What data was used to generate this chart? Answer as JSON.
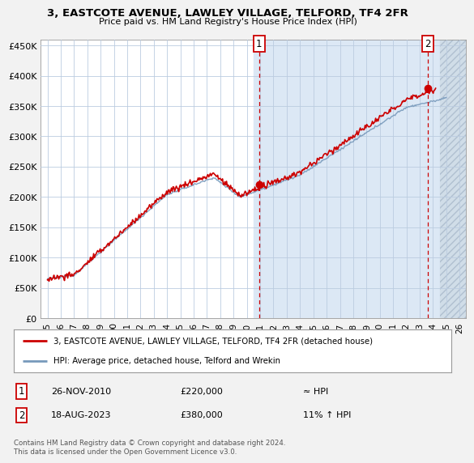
{
  "title": "3, EASTCOTE AVENUE, LAWLEY VILLAGE, TELFORD, TF4 2FR",
  "subtitle": "Price paid vs. HM Land Registry's House Price Index (HPI)",
  "ylim": [
    0,
    460000
  ],
  "yticks": [
    0,
    50000,
    100000,
    150000,
    200000,
    250000,
    300000,
    350000,
    400000,
    450000
  ],
  "ytick_labels": [
    "£0",
    "£50K",
    "£100K",
    "£150K",
    "£200K",
    "£250K",
    "£300K",
    "£350K",
    "£400K",
    "£450K"
  ],
  "xticks": [
    1995,
    1996,
    1997,
    1998,
    1999,
    2000,
    2001,
    2002,
    2003,
    2004,
    2005,
    2006,
    2007,
    2008,
    2009,
    2010,
    2011,
    2012,
    2013,
    2014,
    2015,
    2016,
    2017,
    2018,
    2019,
    2020,
    2021,
    2022,
    2023,
    2024,
    2025,
    2026
  ],
  "xlim_left": 1994.5,
  "xlim_right": 2026.5,
  "transaction1_x": 2010.91,
  "transaction1_y": 220000,
  "transaction1_label": "1",
  "transaction1_date": "26-NOV-2010",
  "transaction1_price": "£220,000",
  "transaction1_hpi": "≈ HPI",
  "transaction2_x": 2023.62,
  "transaction2_y": 380000,
  "transaction2_label": "2",
  "transaction2_date": "18-AUG-2023",
  "transaction2_price": "£380,000",
  "transaction2_hpi": "11% ↑ HPI",
  "hpi_line_color": "#7799bb",
  "price_line_color": "#cc0000",
  "plot_bg_white": "#ffffff",
  "plot_bg_blue": "#dce8f5",
  "future_bg": "#d0dde8",
  "grid_color": "#bbcce0",
  "future_start": 2024.5,
  "shade_start": 2010.5,
  "legend_line1": "3, EASTCOTE AVENUE, LAWLEY VILLAGE, TELFORD, TF4 2FR (detached house)",
  "legend_line2": "HPI: Average price, detached house, Telford and Wrekin",
  "footer": "Contains HM Land Registry data © Crown copyright and database right 2024.\nThis data is licensed under the Open Government Licence v3.0."
}
